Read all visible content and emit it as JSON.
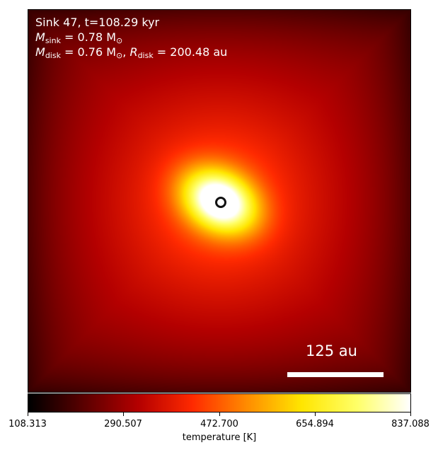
{
  "annotation": {
    "line1": "Sink 47, t=108.29 kyr",
    "m_sink_symbol": "M",
    "m_sink_sub": "sink",
    "m_sink_value": " = 0.78 M",
    "m_sink_unit_sub": "⊙",
    "m_disk_symbol": "M",
    "m_disk_sub": "disk",
    "m_disk_value": " = 0.76 M",
    "m_disk_unit_sub": "⊙",
    "separator": ", ",
    "r_disk_symbol": "R",
    "r_disk_sub": "disk",
    "r_disk_value": " = 200.48 au"
  },
  "scalebar": {
    "label": "125 au"
  },
  "colorbar": {
    "label": "temperature [K]",
    "ticks": [
      "108.313",
      "290.507",
      "472.700",
      "654.894",
      "837.088"
    ],
    "colormap": [
      "#000000",
      "#5a0000",
      "#b40000",
      "#ff2a00",
      "#ff8c00",
      "#ffe600",
      "#ffff66",
      "#ffffff"
    ]
  }
}
